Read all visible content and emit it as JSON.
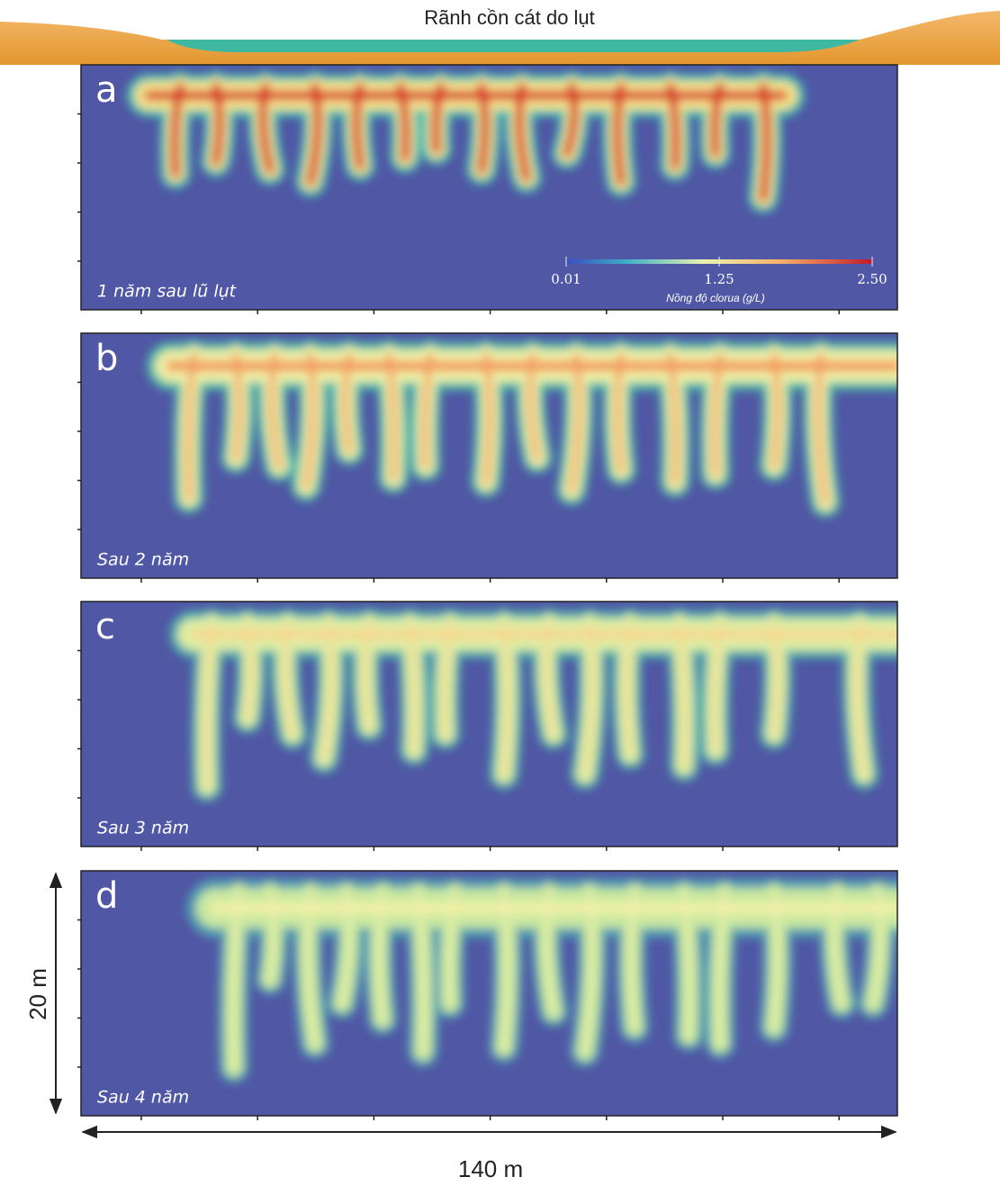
{
  "header": {
    "title": "Rãnh cồn cát do lụt"
  },
  "panels": [
    {
      "label": "a",
      "caption": "1 năm sau lũ lụt"
    },
    {
      "label": "b",
      "caption": "Sau 2 năm"
    },
    {
      "label": "c",
      "caption": "Sau 3 năm"
    },
    {
      "label": "d",
      "caption": "Sau 4 năm"
    }
  ],
  "colorbar": {
    "ticks": [
      "0.01",
      "1.25",
      "2.50"
    ],
    "label": "Nồng độ clorua (g/L)"
  },
  "scale": {
    "height": "20 m",
    "width": "140 m"
  }
}
